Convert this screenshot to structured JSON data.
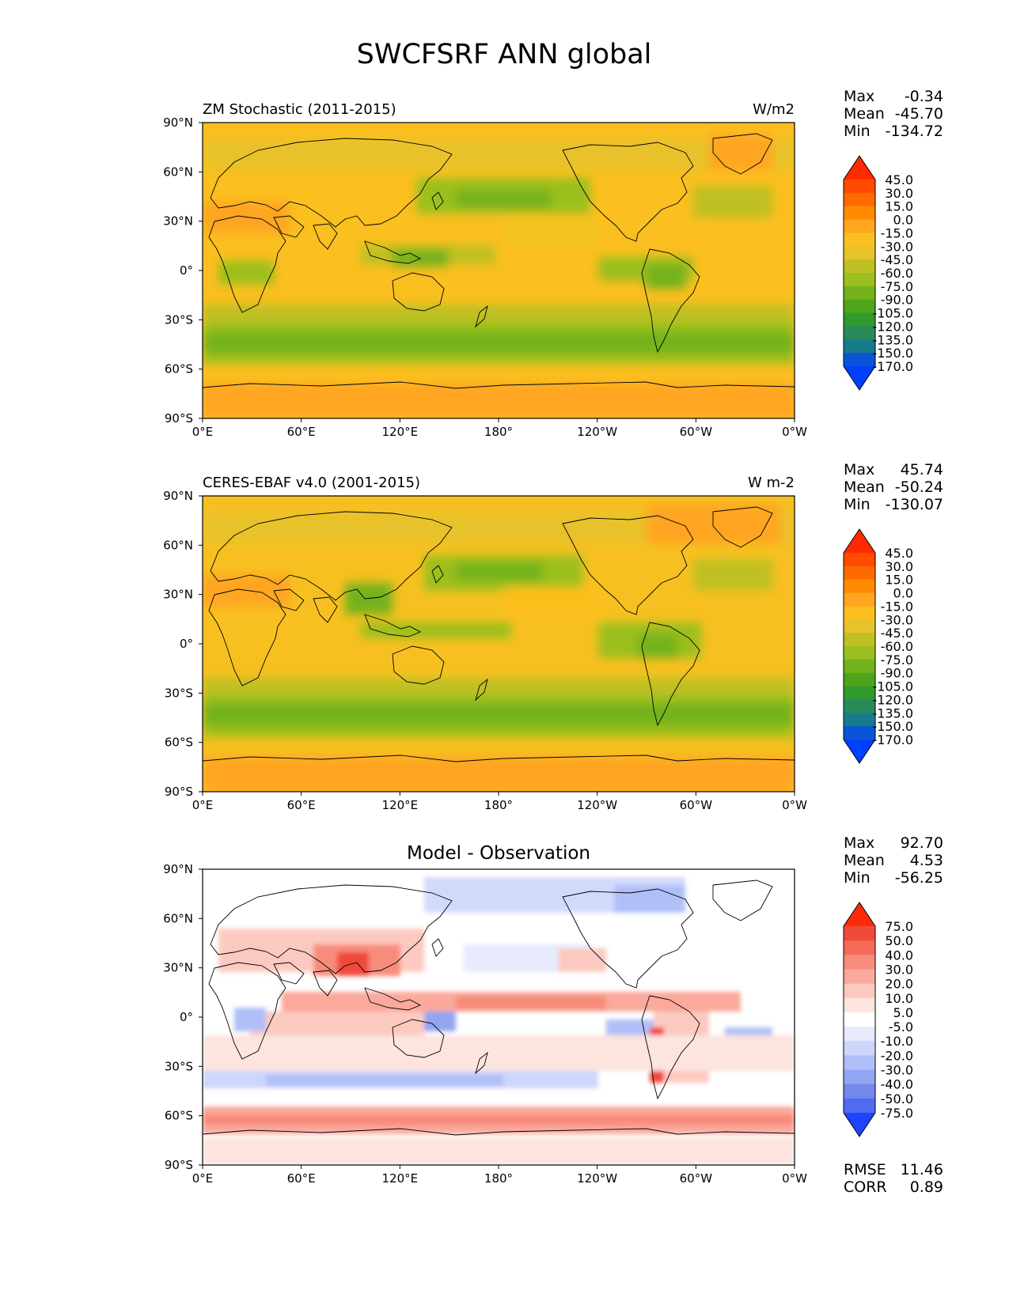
{
  "title": "SWCFSRF ANN global",
  "lon_ticks": [
    "0°E",
    "60°E",
    "120°E",
    "180°",
    "120°W",
    "60°W",
    "0°W"
  ],
  "lat_ticks": [
    "90°N",
    "60°N",
    "30°N",
    "0°",
    "30°S",
    "60°S",
    "90°S"
  ],
  "panels": [
    {
      "id": "model",
      "title_left": "ZM Stochastic (2011-2015)",
      "title_right": "W/m2",
      "title_center": "",
      "stats": [
        {
          "label": "Max",
          "value": "-0.34"
        },
        {
          "label": "Mean",
          "value": "-45.70"
        },
        {
          "label": "Min",
          "value": "-134.72"
        }
      ],
      "colorbar": {
        "levels": [
          "45.0",
          "30.0",
          "15.0",
          "0.0",
          "-15.0",
          "-30.0",
          "-45.0",
          "-60.0",
          "-75.0",
          "-90.0",
          "-105.0",
          "-120.0",
          "-135.0",
          "-150.0",
          "-170.0"
        ],
        "colors": [
          "#ff2a00",
          "#ff4a00",
          "#ff6a00",
          "#ff8c00",
          "#ffa520",
          "#fbbf1f",
          "#e8c22a",
          "#bfc024",
          "#9bbf1f",
          "#73b21a",
          "#4ea51b",
          "#2f9a2e",
          "#2a8a5a",
          "#167c8c",
          "#0a55d5",
          "#0040ff"
        ]
      },
      "extra_stats": []
    },
    {
      "id": "obs",
      "title_left": "CERES-EBAF v4.0 (2001-2015)",
      "title_right": "W m-2",
      "title_center": "",
      "stats": [
        {
          "label": "Max",
          "value": "45.74"
        },
        {
          "label": "Mean",
          "value": "-50.24"
        },
        {
          "label": "Min",
          "value": "-130.07"
        }
      ],
      "colorbar": {
        "levels": [
          "45.0",
          "30.0",
          "15.0",
          "0.0",
          "-15.0",
          "-30.0",
          "-45.0",
          "-60.0",
          "-75.0",
          "-90.0",
          "-105.0",
          "-120.0",
          "-135.0",
          "-150.0",
          "-170.0"
        ],
        "colors": [
          "#ff2a00",
          "#ff4a00",
          "#ff6a00",
          "#ff8c00",
          "#ffa520",
          "#fbbf1f",
          "#e8c22a",
          "#bfc024",
          "#9bbf1f",
          "#73b21a",
          "#4ea51b",
          "#2f9a2e",
          "#2a8a5a",
          "#167c8c",
          "#0a55d5",
          "#0040ff"
        ]
      },
      "extra_stats": []
    },
    {
      "id": "diff",
      "title_left": "",
      "title_right": "",
      "title_center": "Model - Observation",
      "stats": [
        {
          "label": "Max",
          "value": "92.70"
        },
        {
          "label": "Mean",
          "value": "4.53"
        },
        {
          "label": "Min",
          "value": "-56.25"
        }
      ],
      "colorbar": {
        "levels": [
          "75.0",
          "50.0",
          "40.0",
          "30.0",
          "20.0",
          "10.0",
          "5.0",
          "-5.0",
          "-10.0",
          "-20.0",
          "-30.0",
          "-40.0",
          "-50.0",
          "-75.0"
        ],
        "colors": [
          "#ff2a0a",
          "#f04a3a",
          "#f56a58",
          "#f88c7c",
          "#faa99c",
          "#fcc9c0",
          "#fde4de",
          "#ffffff",
          "#e6eafd",
          "#cdd6fb",
          "#b0bff8",
          "#92a5f3",
          "#7289ec",
          "#4f6bf2",
          "#1e44ff"
        ]
      },
      "extra_stats": [
        {
          "label": "RMSE",
          "value": "11.46"
        },
        {
          "label": "CORR",
          "value": "0.89"
        }
      ]
    }
  ],
  "colors": {
    "model_ocean": "#fbbf1f",
    "obs_ocean": "#f7c020",
    "diff_background": "#ffffff"
  }
}
